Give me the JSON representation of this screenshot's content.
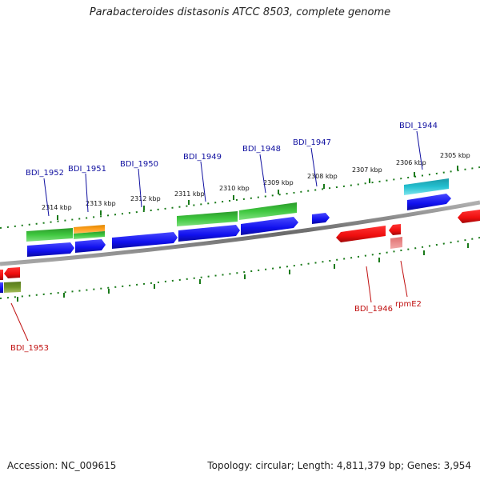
{
  "title": "Parabacteroides distasonis ATCC 8503, complete genome",
  "accession": "Accession: NC_009615",
  "summary": "Topology: circular; Length: 4,811,379 bp; Genes: 3,954",
  "ruler_labels": [
    "2314 kbp",
    "2313 kbp",
    "2312 kbp",
    "2311 kbp",
    "2310 kbp",
    "2309 kbp",
    "2308 kbp",
    "2307 kbp",
    "2306 kbp",
    "2305 kbp"
  ],
  "forward_gene_labels": [
    "BDI_1952",
    "BDI_1951",
    "BDI_1950",
    "BDI_1949",
    "BDI_1948",
    "BDI_1947",
    "BDI_1944"
  ],
  "reverse_gene_labels": [
    "BDI_1953",
    "BDI_1946",
    "rpmE2"
  ],
  "colors": {
    "forward_label": "#1010a0",
    "reverse_label": "#c01010",
    "cds_forward": "#1a1aff",
    "cds_reverse": "#ee1111",
    "gene_green": "#33bb33",
    "gene_orange": "#ff9900",
    "gene_cyan": "#22bbcc",
    "gene_olive": "#6b8e23",
    "ruler_tick": "#1a7a1a",
    "backbone": "#888888"
  }
}
